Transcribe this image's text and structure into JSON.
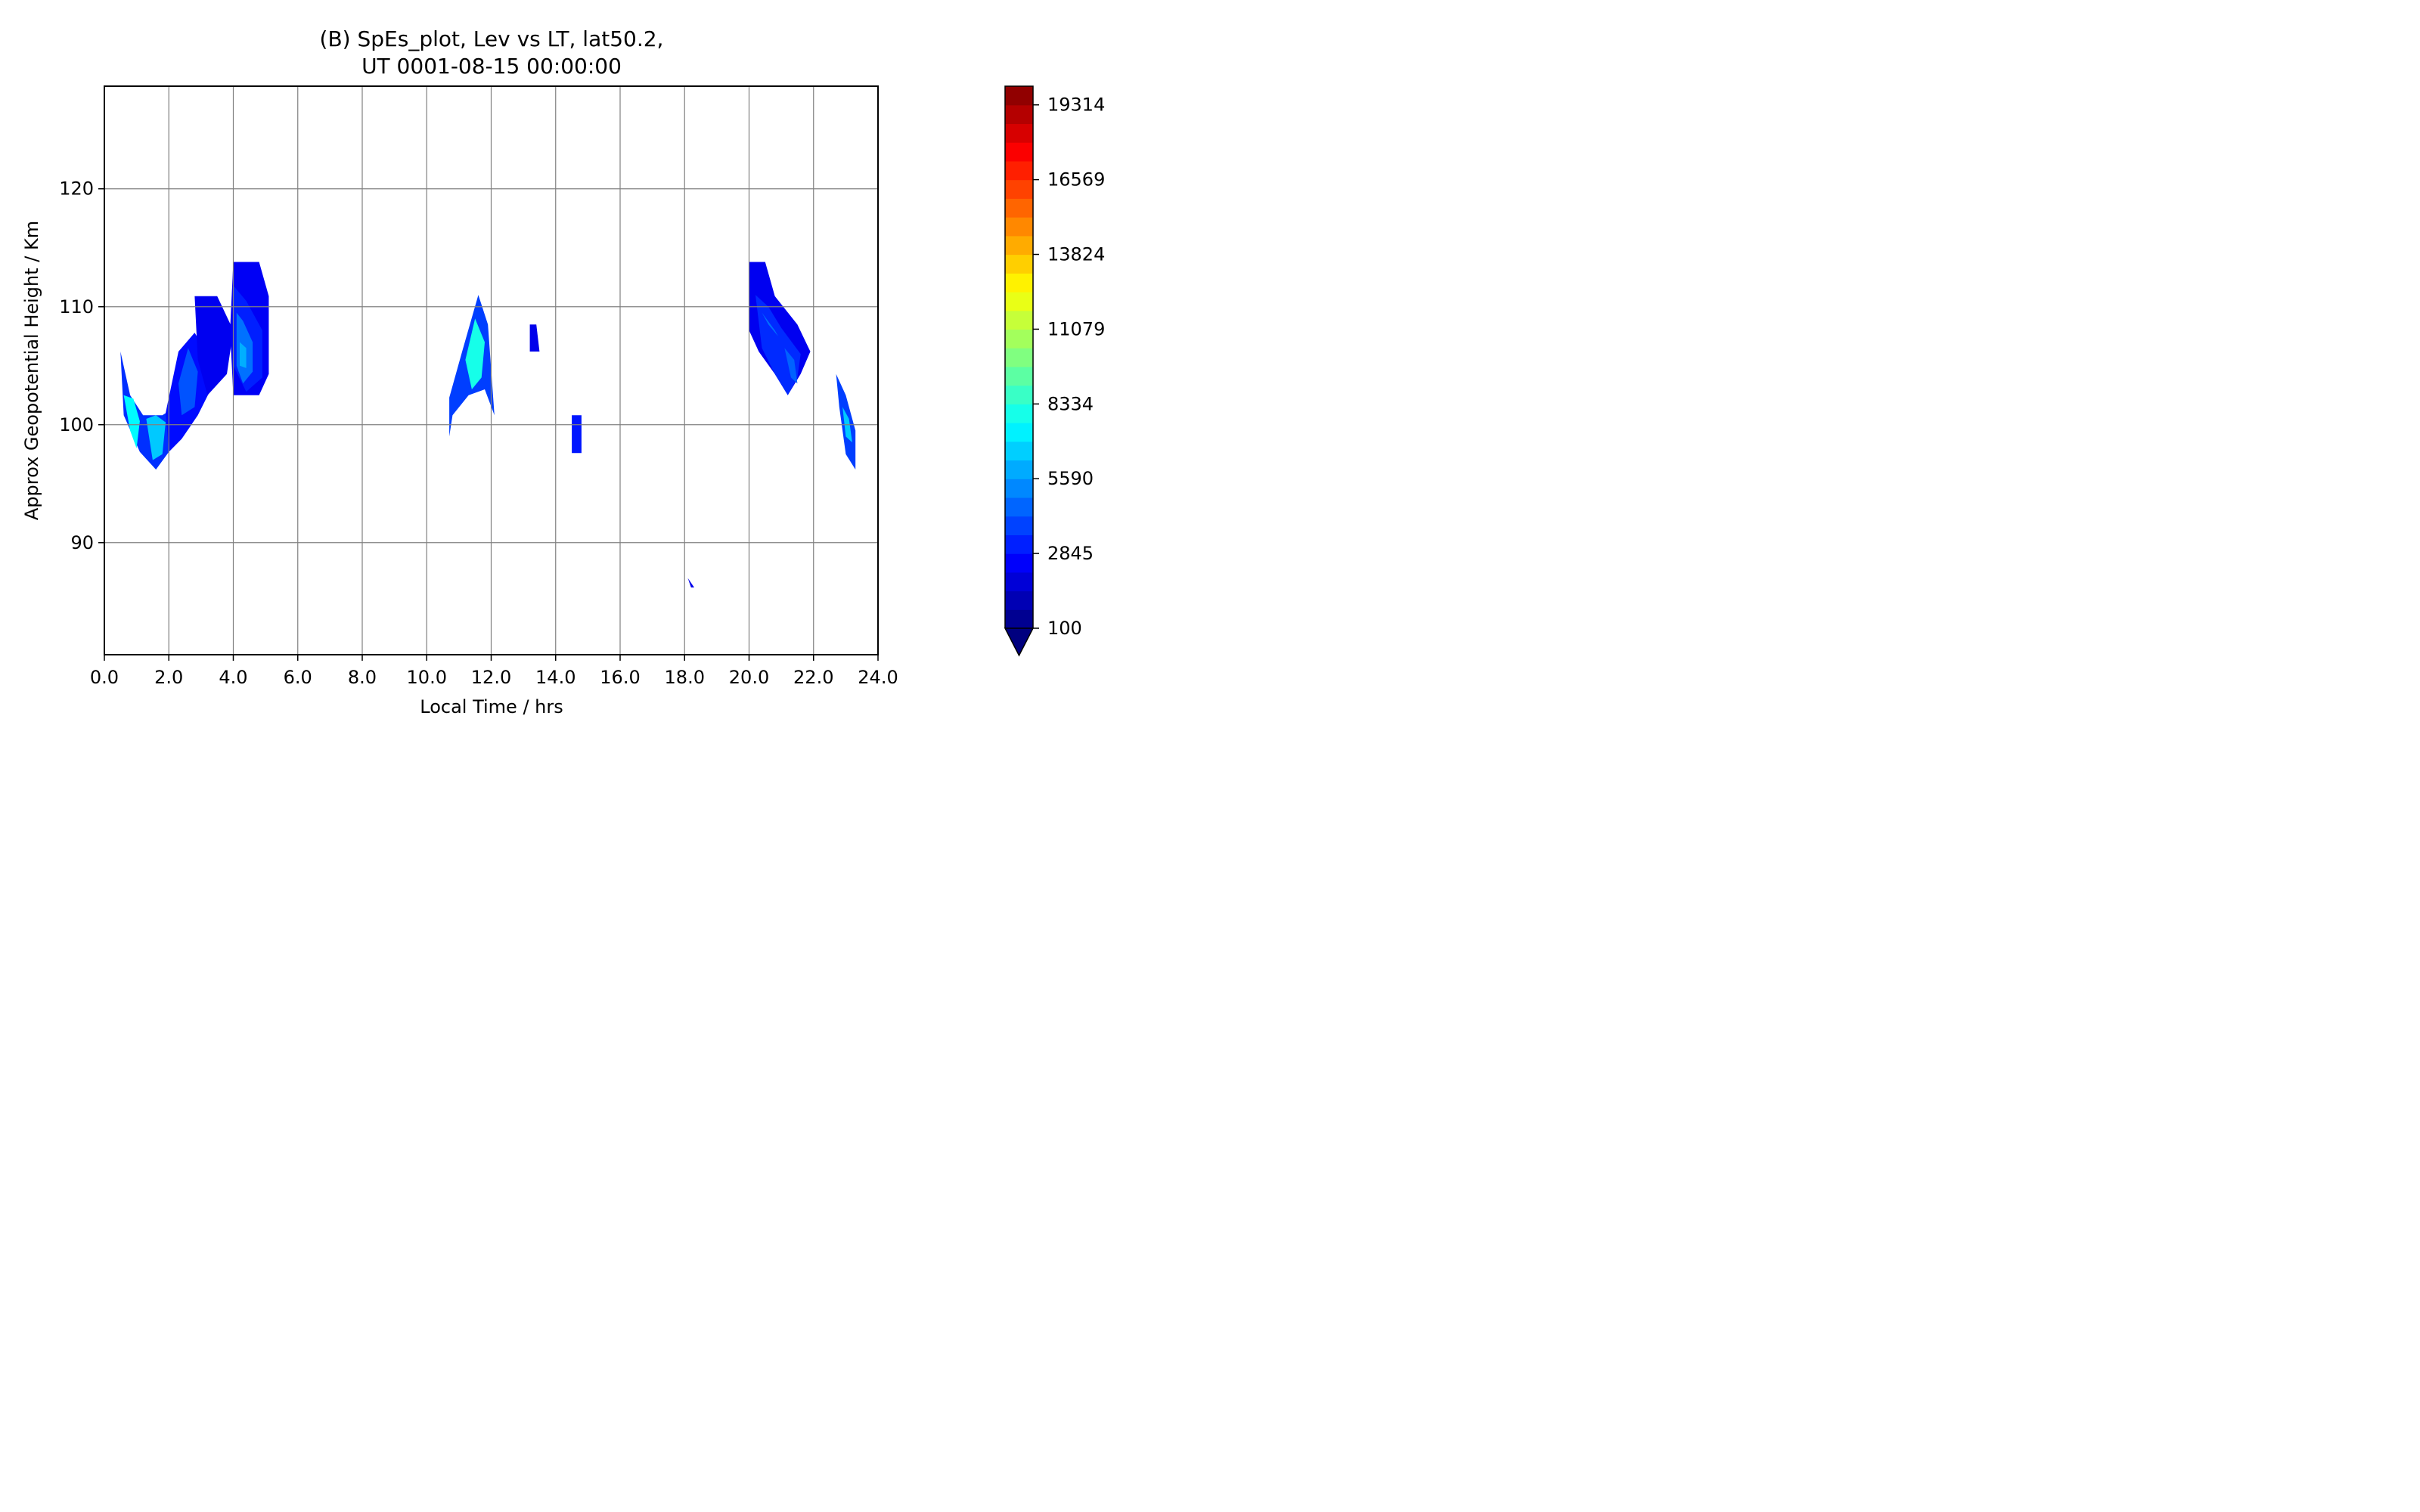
{
  "chart_data": {
    "type": "contour",
    "title_line1": "(B) SpEs_plot, Lev vs LT, lat50.2,",
    "title_line2": "UT 0001-08-15 00:00:00",
    "xlabel": "Local Time / hrs",
    "ylabel": "Approx Geopotential Height / Km",
    "xlim": [
      0,
      24
    ],
    "ylim": [
      80.5,
      128.7
    ],
    "xticks": [
      "0.0",
      "2.0",
      "4.0",
      "6.0",
      "8.0",
      "10.0",
      "12.0",
      "14.0",
      "16.0",
      "18.0",
      "20.0",
      "22.0",
      "24.0"
    ],
    "yticks": [
      "90",
      "100",
      "110",
      "120"
    ],
    "grid": true,
    "colorbar": {
      "min": 100,
      "max": 20000,
      "extend": "min",
      "ticks": [
        "100",
        "2845",
        "5590",
        "8334",
        "11079",
        "13824",
        "16569",
        "19314"
      ],
      "tick_values": [
        100,
        2845,
        5590,
        8334,
        11079,
        13824,
        16569,
        19314
      ],
      "colormap": "jet"
    },
    "regions": [
      {
        "x": [
          0.5,
          0.8,
          1.2,
          1.8,
          2.2,
          2.4,
          2.0,
          1.6,
          1.1,
          0.6
        ],
        "y": [
          106.2,
          102.5,
          100.8,
          100.8,
          101.5,
          99.8,
          97.7,
          96.2,
          97.7,
          100.8
        ],
        "value": 3500
      },
      {
        "x": [
          0.6,
          0.9,
          1.1,
          1.0,
          0.8
        ],
        "y": [
          102.5,
          102.2,
          100.3,
          98.0,
          99.5
        ],
        "value": 7500
      },
      {
        "x": [
          1.3,
          1.6,
          1.9,
          1.8,
          1.5
        ],
        "y": [
          100.5,
          100.8,
          100.2,
          97.5,
          97.0
        ],
        "value": 6500
      },
      {
        "x": [
          1.9,
          2.3,
          2.8,
          3.2,
          3.3,
          2.9,
          2.4,
          2.0
        ],
        "y": [
          101.0,
          106.2,
          107.8,
          106.0,
          103.0,
          100.8,
          98.8,
          97.7
        ],
        "value": 2800
      },
      {
        "x": [
          2.3,
          2.6,
          2.9,
          2.8,
          2.4
        ],
        "y": [
          103.5,
          106.5,
          104.5,
          101.5,
          100.8
        ],
        "value": 4200
      },
      {
        "x": [
          2.8,
          3.5,
          4.0,
          3.8,
          3.2,
          2.9
        ],
        "y": [
          110.9,
          110.9,
          108.0,
          104.3,
          102.5,
          105.5
        ],
        "value": 2300
      },
      {
        "x": [
          4.0,
          4.8,
          5.1,
          5.1,
          4.8,
          4.0,
          3.9
        ],
        "y": [
          113.8,
          113.8,
          110.9,
          104.3,
          102.5,
          102.5,
          108.0
        ],
        "value": 2400
      },
      {
        "x": [
          4.0,
          4.4,
          4.9,
          4.9,
          4.4,
          4.0
        ],
        "y": [
          111.8,
          110.5,
          108.0,
          104.0,
          102.8,
          105.0
        ],
        "value": 3200
      },
      {
        "x": [
          4.1,
          4.3,
          4.6,
          4.6,
          4.3,
          4.1
        ],
        "y": [
          109.5,
          108.8,
          107.0,
          104.5,
          103.5,
          105.0
        ],
        "value": 4800
      },
      {
        "x": [
          4.2,
          4.4,
          4.4,
          4.2
        ],
        "y": [
          107.0,
          106.5,
          104.8,
          105.0
        ],
        "value": 6000
      },
      {
        "x": [
          10.7,
          11.1,
          11.6,
          11.9,
          12.1,
          11.8,
          11.3,
          10.8,
          10.7
        ],
        "y": [
          102.3,
          106.2,
          111.0,
          108.5,
          100.8,
          103.0,
          102.5,
          100.8,
          99.0
        ],
        "value": 3800
      },
      {
        "x": [
          11.2,
          11.5,
          11.8,
          11.7,
          11.4
        ],
        "y": [
          105.5,
          109.0,
          107.0,
          104.0,
          103.0
        ],
        "value": 8000
      },
      {
        "x": [
          13.2,
          13.4,
          13.5,
          13.2
        ],
        "y": [
          108.5,
          108.5,
          106.2,
          106.2
        ],
        "value": 2200
      },
      {
        "x": [
          14.5,
          14.8,
          14.8,
          14.5
        ],
        "y": [
          100.8,
          100.8,
          97.6,
          97.6
        ],
        "value": 3000
      },
      {
        "x": [
          18.1,
          18.2,
          18.3
        ],
        "y": [
          87.0,
          86.2,
          86.2
        ],
        "value": 2200
      },
      {
        "x": [
          20.0,
          20.5,
          20.8,
          21.5,
          21.9,
          21.6,
          21.2,
          20.8,
          20.3,
          20.0
        ],
        "y": [
          113.8,
          113.8,
          110.9,
          108.5,
          106.2,
          104.3,
          102.5,
          104.3,
          106.2,
          108.0
        ],
        "value": 2300
      },
      {
        "x": [
          20.2,
          20.6,
          21.0,
          21.6,
          21.5,
          21.2,
          20.8,
          20.4
        ],
        "y": [
          111.0,
          110.0,
          108.2,
          106.0,
          104.0,
          102.5,
          104.3,
          106.5
        ],
        "value": 3400
      },
      {
        "x": [
          20.4,
          20.8,
          20.9,
          20.6
        ],
        "y": [
          109.5,
          108.0,
          107.5,
          108.5
        ],
        "value": 4800
      },
      {
        "x": [
          21.1,
          21.4,
          21.5,
          21.3
        ],
        "y": [
          106.5,
          105.5,
          103.5,
          104.0
        ],
        "value": 4500
      },
      {
        "x": [
          22.7,
          23.0,
          23.3,
          23.3,
          23.0,
          22.8
        ],
        "y": [
          104.3,
          102.5,
          99.5,
          96.2,
          97.5,
          101.5
        ],
        "value": 3800
      },
      {
        "x": [
          22.9,
          23.1,
          23.2,
          23.0
        ],
        "y": [
          101.5,
          100.5,
          98.5,
          99.0
        ],
        "value": 6500
      }
    ]
  }
}
